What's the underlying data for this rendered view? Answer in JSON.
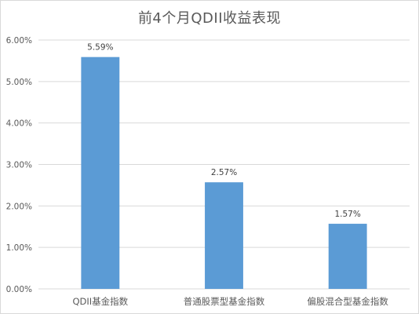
{
  "chart_data": {
    "type": "bar",
    "title": "前4个月QDII收益表现",
    "categories": [
      "QDII基金指数",
      "普通股票型基金指数",
      "偏股混合型基金指数"
    ],
    "values": [
      5.59,
      2.57,
      1.57
    ],
    "value_labels": [
      "5.59%",
      "2.57%",
      "1.57%"
    ],
    "ylim": [
      0,
      6
    ],
    "yticks": [
      0,
      1,
      2,
      3,
      4,
      5,
      6
    ],
    "ytick_labels": [
      "0.00%",
      "1.00%",
      "2.00%",
      "3.00%",
      "4.00%",
      "5.00%",
      "6.00%"
    ],
    "xlabel": "",
    "ylabel": "",
    "grid": true,
    "legend": "none",
    "bar_color": "#5b9bd5",
    "grid_color": "#d9d9d9"
  }
}
